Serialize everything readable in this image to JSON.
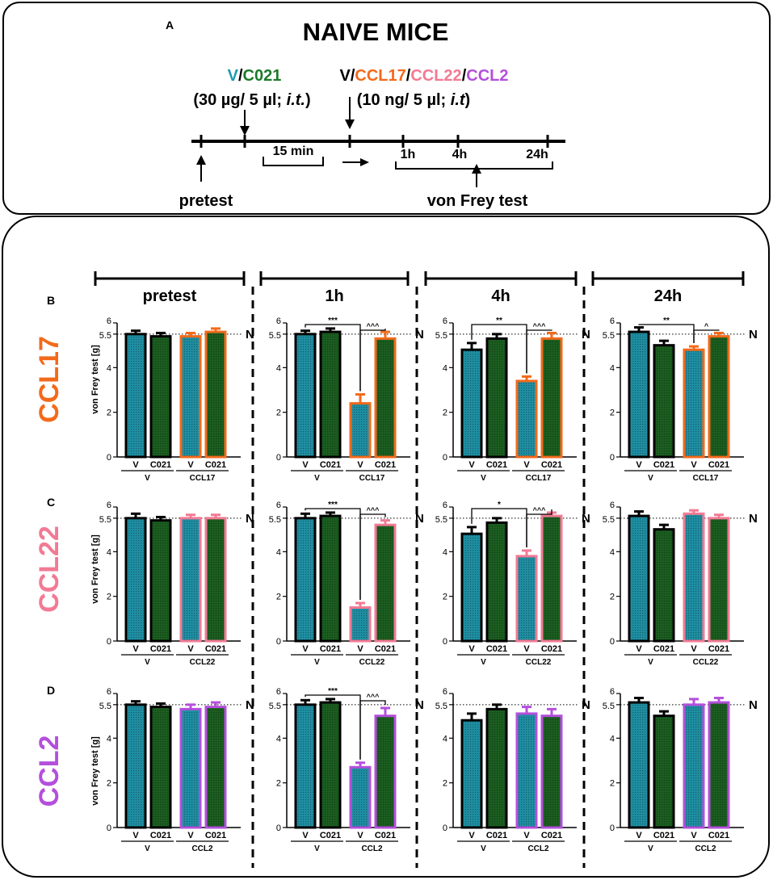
{
  "colors": {
    "vehicle_fill": "#1f8fa3",
    "c021_fill": "#1b5e20",
    "ccl17": "#f26a1b",
    "ccl22": "#f27a94",
    "ccl2": "#b44fdc",
    "teal_text": "#1a9bb0",
    "green_text": "#1b7a2a",
    "outline": "#000000"
  },
  "protocol": {
    "panel_letter": "A",
    "title": "NAIVE MICE",
    "inj1_line1": [
      "V",
      "/",
      "C021"
    ],
    "inj1_line2": "(30 µg/ 5 µl; ",
    "inj1_route": "i.t.",
    "inj1_close": ")",
    "inj2_line1": [
      "V",
      "/",
      "CCL17",
      "/",
      "CCL22",
      "/",
      "CCL2"
    ],
    "inj2_line2": "(10 ng/ 5 µl; ",
    "inj2_route": "i.t",
    "inj2_close": ")",
    "interval": "15 min",
    "times": [
      "1h",
      "4h",
      "24h"
    ],
    "pretest": "pretest",
    "test": "von Frey test"
  },
  "columns": [
    "pretest",
    "1h",
    "4h",
    "24h"
  ],
  "chart_data": [
    {
      "type": "bar",
      "panel": "B",
      "row_label": "CCL17",
      "ylabel": "von Frey test [g]",
      "yticks": [
        0,
        2,
        4,
        5.5,
        6
      ],
      "ylim": [
        0,
        6
      ],
      "normal_line": 5.5,
      "normal_label": "N",
      "categories": [
        "V",
        "C021",
        "V",
        "C021"
      ],
      "groups": [
        "V",
        "CCL17"
      ],
      "timepoints": [
        {
          "time": "pretest",
          "values": [
            5.5,
            5.4,
            5.4,
            5.6
          ],
          "errors": [
            0.15,
            0.15,
            0.15,
            0.15
          ],
          "annotations": []
        },
        {
          "time": "1h",
          "values": [
            5.5,
            5.6,
            2.4,
            5.3
          ],
          "errors": [
            0.15,
            0.15,
            0.4,
            0.3
          ],
          "annotations": [
            {
              "from": 0,
              "to": 2,
              "label": "***"
            },
            {
              "from": 2,
              "to": 3,
              "label": "^^^"
            }
          ]
        },
        {
          "time": "4h",
          "values": [
            4.8,
            5.3,
            3.4,
            5.3
          ],
          "errors": [
            0.3,
            0.2,
            0.2,
            0.25
          ],
          "annotations": [
            {
              "from": 0,
              "to": 2,
              "label": "**"
            },
            {
              "from": 2,
              "to": 3,
              "label": "^^^"
            }
          ]
        },
        {
          "time": "24h",
          "values": [
            5.6,
            5.0,
            4.8,
            5.4
          ],
          "errors": [
            0.2,
            0.2,
            0.15,
            0.15
          ],
          "annotations": [
            {
              "from": 0,
              "to": 2,
              "label": "**"
            },
            {
              "from": 2,
              "to": 3,
              "label": "^"
            }
          ]
        }
      ]
    },
    {
      "type": "bar",
      "panel": "C",
      "row_label": "CCL22",
      "ylabel": "von Frey test [g]",
      "yticks": [
        0,
        2,
        4,
        5.5,
        6
      ],
      "ylim": [
        0,
        6
      ],
      "normal_line": 5.5,
      "normal_label": "N",
      "categories": [
        "V",
        "C021",
        "V",
        "C021"
      ],
      "groups": [
        "V",
        "CCL22"
      ],
      "timepoints": [
        {
          "time": "pretest",
          "values": [
            5.5,
            5.4,
            5.5,
            5.5
          ],
          "errors": [
            0.2,
            0.15,
            0.15,
            0.15
          ],
          "annotations": []
        },
        {
          "time": "1h",
          "values": [
            5.5,
            5.6,
            1.5,
            5.2
          ],
          "errors": [
            0.2,
            0.15,
            0.2,
            0.2
          ],
          "annotations": [
            {
              "from": 0,
              "to": 2,
              "label": "***"
            },
            {
              "from": 2,
              "to": 3,
              "label": "^^^"
            }
          ]
        },
        {
          "time": "4h",
          "values": [
            4.8,
            5.3,
            3.8,
            5.6
          ],
          "errors": [
            0.3,
            0.2,
            0.25,
            0.15
          ],
          "annotations": [
            {
              "from": 0,
              "to": 2,
              "label": "*"
            },
            {
              "from": 2,
              "to": 3,
              "label": "^^^"
            }
          ]
        },
        {
          "time": "24h",
          "values": [
            5.6,
            5.0,
            5.7,
            5.5
          ],
          "errors": [
            0.2,
            0.2,
            0.15,
            0.15
          ],
          "annotations": []
        }
      ]
    },
    {
      "type": "bar",
      "panel": "D",
      "row_label": "CCL2",
      "ylabel": "von Frey test [g]",
      "yticks": [
        0,
        2,
        4,
        5.5,
        6
      ],
      "ylim": [
        0,
        6
      ],
      "normal_line": 5.5,
      "normal_label": "N",
      "categories": [
        "V",
        "C021",
        "V",
        "C021"
      ],
      "groups": [
        "V",
        "CCL2"
      ],
      "timepoints": [
        {
          "time": "pretest",
          "values": [
            5.5,
            5.4,
            5.3,
            5.4
          ],
          "errors": [
            0.15,
            0.15,
            0.2,
            0.2
          ],
          "annotations": []
        },
        {
          "time": "1h",
          "values": [
            5.5,
            5.6,
            2.7,
            5.0
          ],
          "errors": [
            0.2,
            0.15,
            0.2,
            0.35
          ],
          "annotations": [
            {
              "from": 0,
              "to": 2,
              "label": "***"
            },
            {
              "from": 2,
              "to": 3,
              "label": "^^^"
            }
          ]
        },
        {
          "time": "4h",
          "values": [
            4.8,
            5.3,
            5.1,
            5.0
          ],
          "errors": [
            0.3,
            0.2,
            0.3,
            0.3
          ],
          "annotations": []
        },
        {
          "time": "24h",
          "values": [
            5.6,
            5.0,
            5.5,
            5.6
          ],
          "errors": [
            0.2,
            0.2,
            0.25,
            0.2
          ],
          "annotations": []
        }
      ]
    }
  ]
}
